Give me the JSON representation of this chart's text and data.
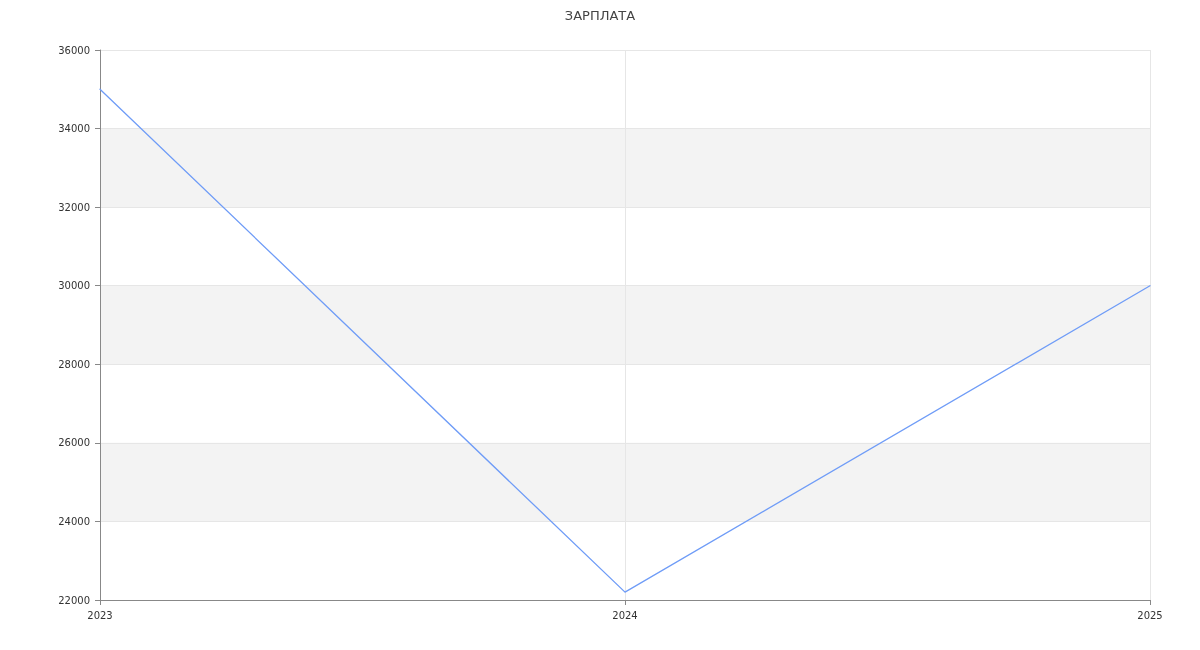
{
  "chart_data": {
    "type": "line",
    "title": "ЗАРПЛАТА",
    "x": [
      2023,
      2024,
      2025
    ],
    "series": [
      {
        "color": "#6f9cf7",
        "values": [
          35000,
          22200,
          30000
        ]
      }
    ],
    "xlim": [
      2023,
      2025
    ],
    "xticks": [
      2023,
      2024,
      2025
    ],
    "ylim": [
      22000,
      36000
    ],
    "yticks": [
      22000,
      24000,
      26000,
      28000,
      30000,
      32000,
      34000,
      36000
    ],
    "grid": true,
    "marker": "none",
    "line_style": "solid"
  }
}
